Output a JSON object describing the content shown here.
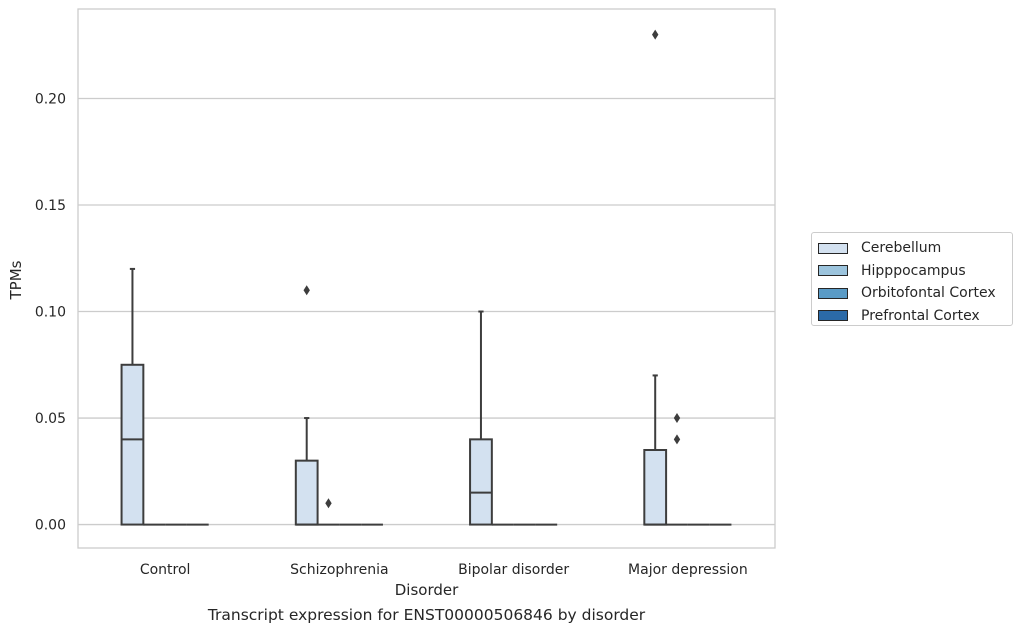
{
  "chart_data": {
    "type": "box",
    "title": "",
    "xlabel": "Disorder",
    "ylabel": "TPMs",
    "caption": "Transcript expression for ENST00000506846 by disorder",
    "categories": [
      "Control",
      "Schizophrenia",
      "Bipolar disorder",
      "Major depression"
    ],
    "ylim": [
      -0.011,
      0.242
    ],
    "yticks": [
      0.0,
      0.05,
      0.1,
      0.15,
      0.2
    ],
    "ytick_labels": [
      "0.00",
      "0.05",
      "0.10",
      "0.15",
      "0.20"
    ],
    "grid": "horizontal",
    "legend_position": "right",
    "series": [
      {
        "name": "Cerebellum",
        "color": "#d3e1f0",
        "boxes": [
          {
            "q1": 0.0,
            "median": 0.04,
            "q3": 0.075,
            "whisker_low": 0.0,
            "whisker_high": 0.12,
            "outliers": []
          },
          {
            "q1": 0.0,
            "median": 0.0,
            "q3": 0.03,
            "whisker_low": 0.0,
            "whisker_high": 0.05,
            "outliers": [
              0.11
            ]
          },
          {
            "q1": 0.0,
            "median": 0.015,
            "q3": 0.04,
            "whisker_low": 0.0,
            "whisker_high": 0.1,
            "outliers": []
          },
          {
            "q1": 0.0,
            "median": 0.0,
            "q3": 0.035,
            "whisker_low": 0.0,
            "whisker_high": 0.07,
            "outliers": [
              0.23
            ]
          }
        ]
      },
      {
        "name": "Hipppocampus",
        "color": "#9cc4dd",
        "boxes": [
          {
            "q1": 0.0,
            "median": 0.0,
            "q3": 0.0,
            "whisker_low": 0.0,
            "whisker_high": 0.0,
            "outliers": []
          },
          {
            "q1": 0.0,
            "median": 0.0,
            "q3": 0.0,
            "whisker_low": 0.0,
            "whisker_high": 0.0,
            "outliers": [
              0.01
            ]
          },
          {
            "q1": 0.0,
            "median": 0.0,
            "q3": 0.0,
            "whisker_low": 0.0,
            "whisker_high": 0.0,
            "outliers": []
          },
          {
            "q1": 0.0,
            "median": 0.0,
            "q3": 0.0,
            "whisker_low": 0.0,
            "whisker_high": 0.0,
            "outliers": [
              0.05,
              0.04
            ]
          }
        ]
      },
      {
        "name": "Orbitofontal Cortex",
        "color": "#5a9bc6",
        "boxes": [
          {
            "q1": 0.0,
            "median": 0.0,
            "q3": 0.0,
            "whisker_low": 0.0,
            "whisker_high": 0.0,
            "outliers": []
          },
          {
            "q1": 0.0,
            "median": 0.0,
            "q3": 0.0,
            "whisker_low": 0.0,
            "whisker_high": 0.0,
            "outliers": []
          },
          {
            "q1": 0.0,
            "median": 0.0,
            "q3": 0.0,
            "whisker_low": 0.0,
            "whisker_high": 0.0,
            "outliers": []
          },
          {
            "q1": 0.0,
            "median": 0.0,
            "q3": 0.0,
            "whisker_low": 0.0,
            "whisker_high": 0.0,
            "outliers": []
          }
        ]
      },
      {
        "name": "Prefrontal Cortex",
        "color": "#2b6aa8",
        "boxes": [
          {
            "q1": 0.0,
            "median": 0.0,
            "q3": 0.0,
            "whisker_low": 0.0,
            "whisker_high": 0.0,
            "outliers": []
          },
          {
            "q1": 0.0,
            "median": 0.0,
            "q3": 0.0,
            "whisker_low": 0.0,
            "whisker_high": 0.0,
            "outliers": []
          },
          {
            "q1": 0.0,
            "median": 0.0,
            "q3": 0.0,
            "whisker_low": 0.0,
            "whisker_high": 0.0,
            "outliers": []
          },
          {
            "q1": 0.0,
            "median": 0.0,
            "q3": 0.0,
            "whisker_low": 0.0,
            "whisker_high": 0.0,
            "outliers": []
          }
        ]
      }
    ]
  }
}
